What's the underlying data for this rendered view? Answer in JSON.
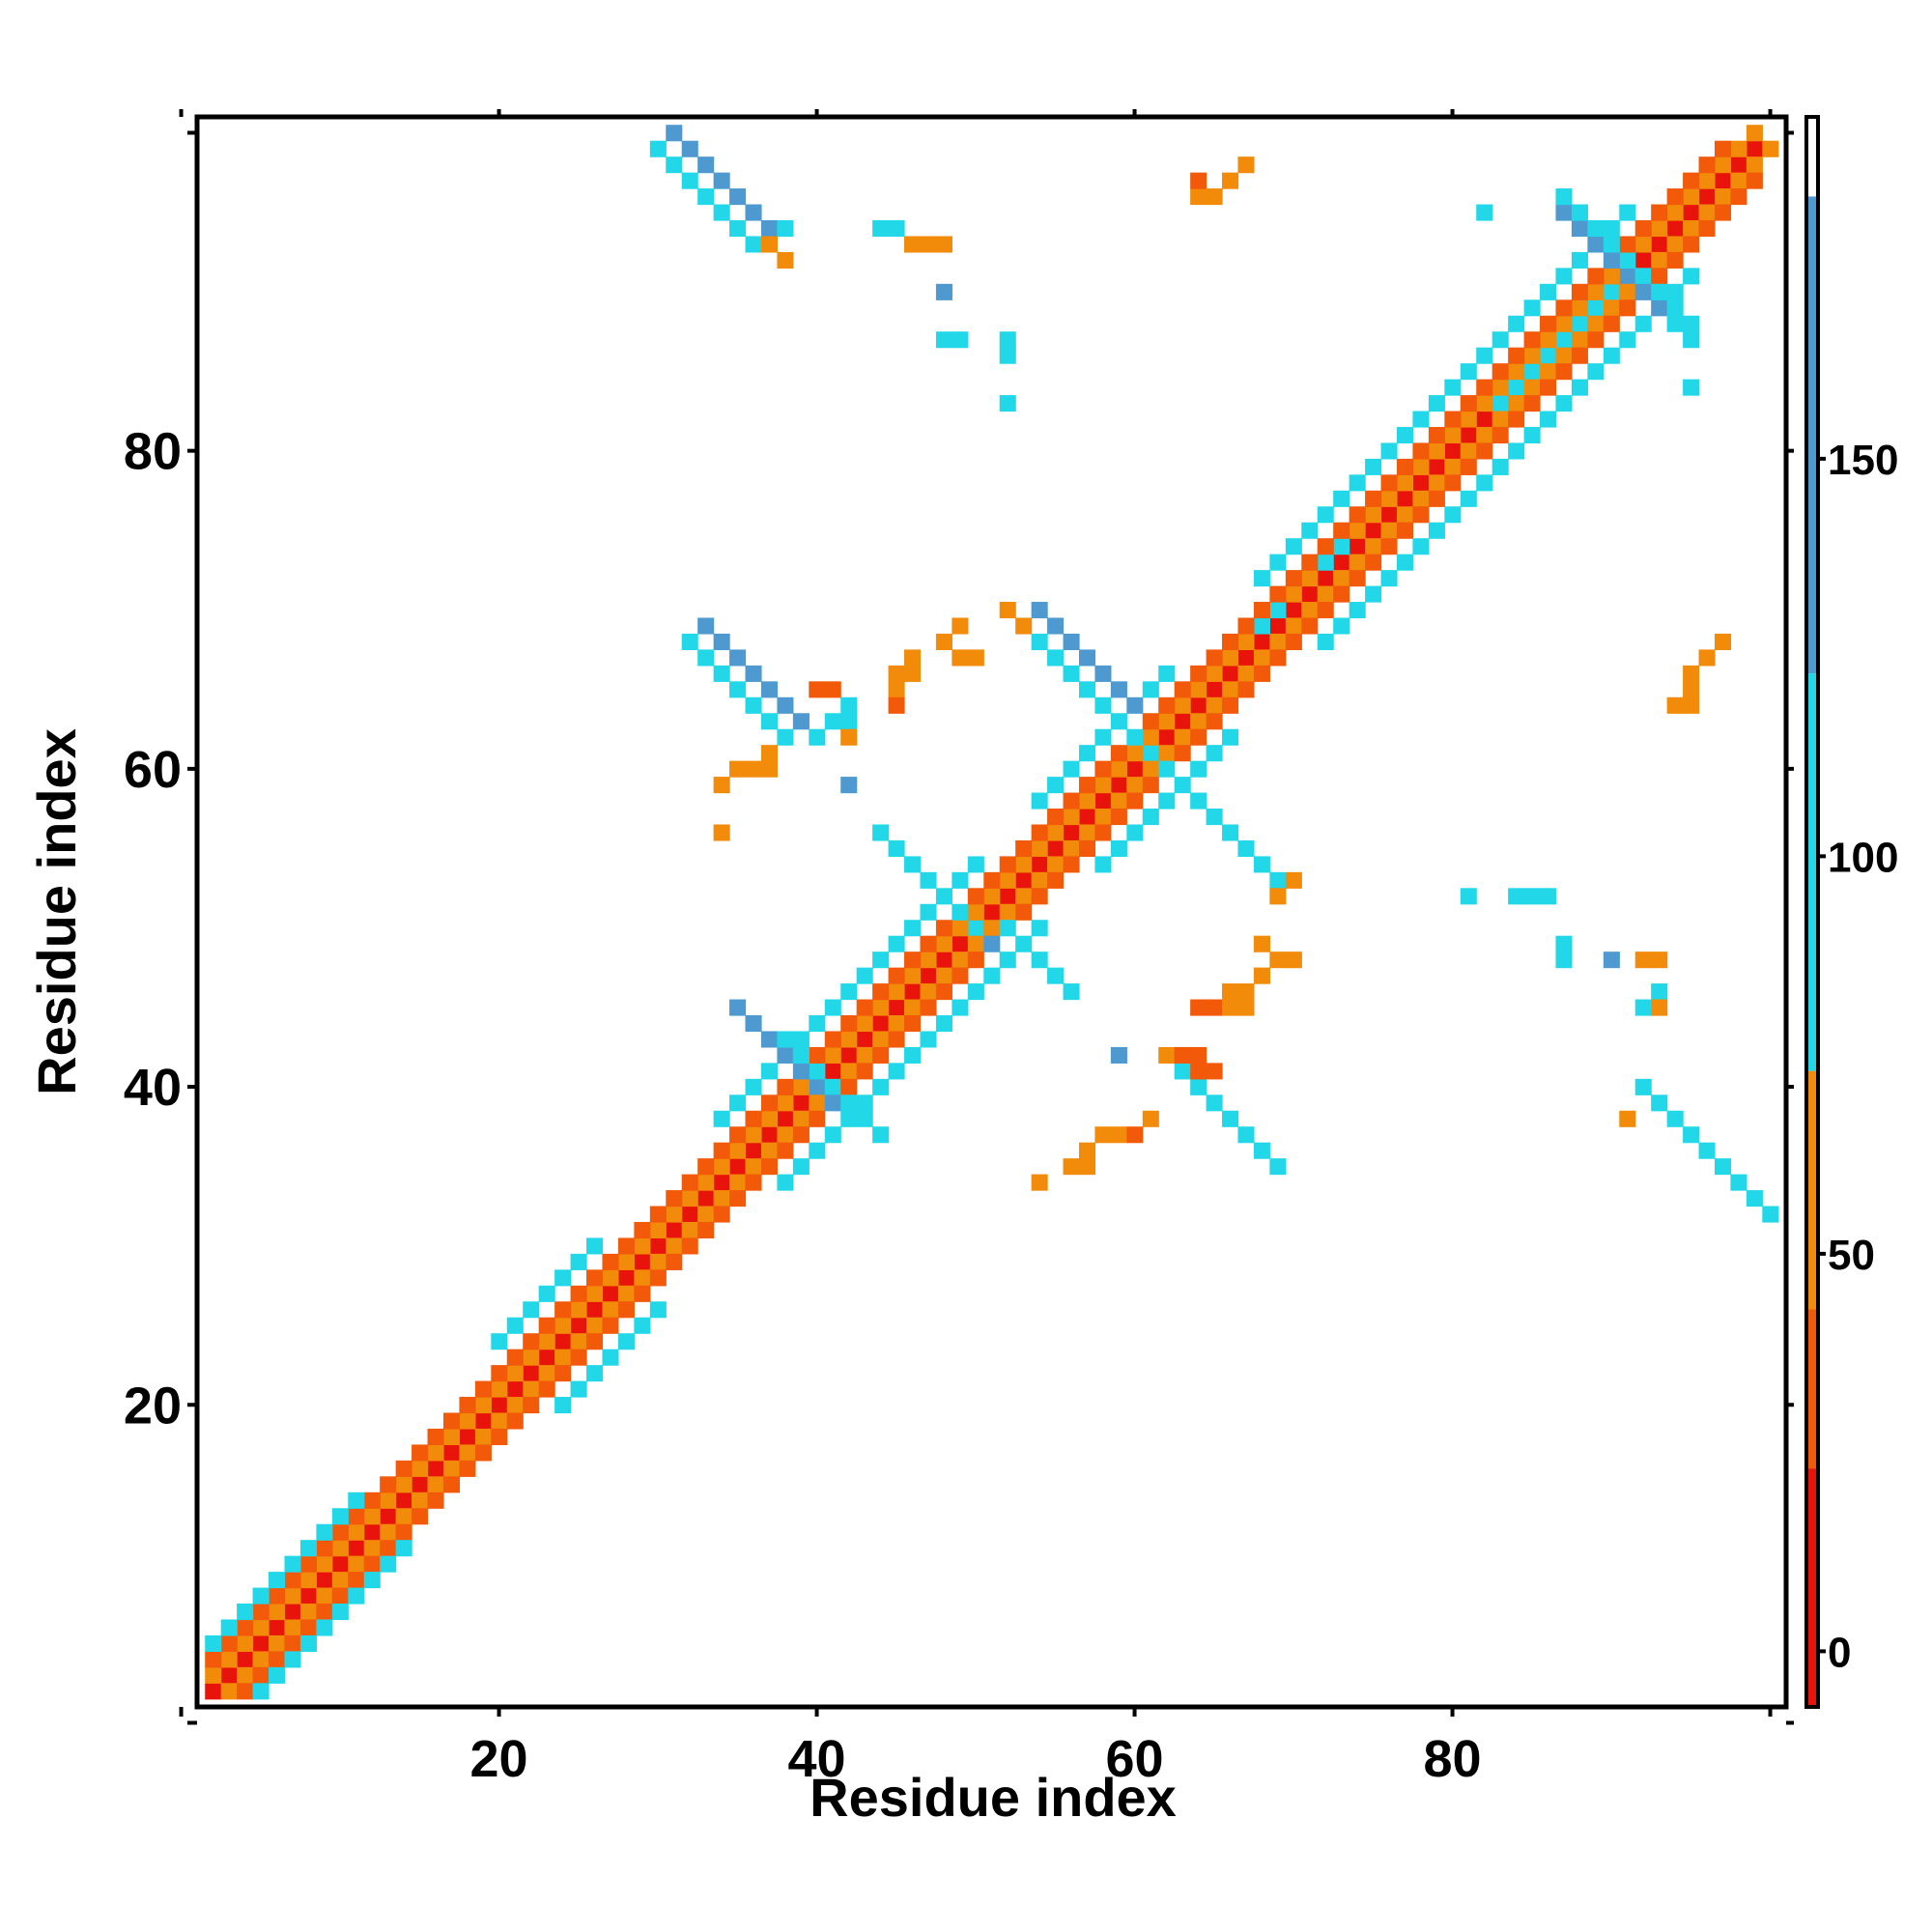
{
  "chart_data": {
    "type": "heatmap",
    "title": "",
    "xlabel": "Residue index",
    "ylabel": "Residue index",
    "xlim": [
      1,
      101
    ],
    "ylim": [
      1,
      101
    ],
    "x_ticks": [
      20,
      40,
      60,
      80
    ],
    "y_ticks": [
      20,
      40,
      60,
      80
    ],
    "colorbar": {
      "ticks": [
        0,
        50,
        100,
        150
      ],
      "range": [
        -7,
        193
      ],
      "bands": [
        {
          "from": -7,
          "to": 23,
          "color": "#e8140c"
        },
        {
          "from": 23,
          "to": 43,
          "color": "#f25a0a"
        },
        {
          "from": 43,
          "to": 73,
          "color": "#f28a0a"
        },
        {
          "from": 73,
          "to": 123,
          "color": "#22d8e8"
        },
        {
          "from": 123,
          "to": 183,
          "color": "#4e9ad0"
        },
        {
          "from": 183,
          "to": 193,
          "color": "#ffffff"
        }
      ]
    },
    "segments": [
      {
        "x0": 2,
        "y0": 2,
        "x1": 99,
        "y1": 99,
        "value": 10
      },
      {
        "x0": 3,
        "y0": 2,
        "x1": 100,
        "y1": 99,
        "value": 55
      },
      {
        "x0": 2,
        "y0": 3,
        "x1": 99,
        "y1": 100,
        "value": 55
      },
      {
        "x0": 4,
        "y0": 2,
        "x1": 99,
        "y1": 97,
        "value": 35
      },
      {
        "x0": 2,
        "y0": 4,
        "x1": 97,
        "y1": 99,
        "value": 35
      },
      {
        "x0": 5,
        "y0": 2,
        "x1": 14,
        "y1": 11,
        "value": 100
      },
      {
        "x0": 2,
        "y0": 5,
        "x1": 11,
        "y1": 14,
        "value": 100
      },
      {
        "x0": 24,
        "y0": 20,
        "x1": 30,
        "y1": 26,
        "value": 100
      },
      {
        "x0": 20,
        "y0": 24,
        "x1": 26,
        "y1": 30,
        "value": 100
      },
      {
        "x0": 38,
        "y0": 34,
        "x1": 54,
        "y1": 50,
        "value": 100
      },
      {
        "x0": 34,
        "y0": 38,
        "x1": 50,
        "y1": 54,
        "value": 100
      },
      {
        "x0": 58,
        "y0": 54,
        "x1": 66,
        "y1": 62,
        "value": 100
      },
      {
        "x0": 54,
        "y0": 58,
        "x1": 62,
        "y1": 66,
        "value": 100
      },
      {
        "x0": 72,
        "y0": 68,
        "x1": 95,
        "y1": 91,
        "value": 100
      },
      {
        "x0": 68,
        "y0": 72,
        "x1": 91,
        "y1": 95,
        "value": 100
      },
      {
        "x0": 31,
        "y0": 100,
        "x1": 37,
        "y1": 94,
        "value": 150
      },
      {
        "x0": 30,
        "y0": 99,
        "x1": 36,
        "y1": 93,
        "value": 100
      },
      {
        "x0": 33,
        "y0": 69,
        "x1": 39,
        "y1": 63,
        "value": 150
      },
      {
        "x0": 32,
        "y0": 68,
        "x1": 38,
        "y1": 62,
        "value": 100
      },
      {
        "x0": 40,
        "y0": 62,
        "x1": 42,
        "y1": 64,
        "value": 100
      },
      {
        "x0": 54,
        "y0": 70,
        "x1": 60,
        "y1": 64,
        "value": 150
      },
      {
        "x0": 53,
        "y0": 69,
        "x1": 61,
        "y1": 61,
        "value": 100
      },
      {
        "x0": 63,
        "y0": 59,
        "x1": 68,
        "y1": 54,
        "value": 150
      },
      {
        "x0": 62,
        "y0": 60,
        "x1": 69,
        "y1": 53,
        "value": 100
      },
      {
        "x0": 45,
        "y0": 55,
        "x1": 51,
        "y1": 49,
        "value": 150
      },
      {
        "x0": 44,
        "y0": 56,
        "x1": 50,
        "y1": 50,
        "value": 100
      },
      {
        "x0": 52,
        "y0": 50,
        "x1": 56,
        "y1": 46,
        "value": 100
      },
      {
        "x0": 35,
        "y0": 45,
        "x1": 41,
        "y1": 43,
        "value": 150
      },
      {
        "x0": 38,
        "y0": 43,
        "x1": 44,
        "y1": 37,
        "value": 100
      },
      {
        "x0": 64,
        "y0": 40,
        "x1": 68,
        "y1": 36,
        "value": 150
      },
      {
        "x0": 63,
        "y0": 41,
        "x1": 69,
        "y1": 35,
        "value": 100
      },
      {
        "x0": 93,
        "y0": 39,
        "x1": 99,
        "y1": 33,
        "value": 150
      },
      {
        "x0": 92,
        "y0": 40,
        "x1": 100,
        "y1": 32,
        "value": 100
      },
      {
        "x0": 87,
        "y0": 95,
        "x1": 93,
        "y1": 89,
        "value": 150
      },
      {
        "x0": 87,
        "y0": 96,
        "x1": 95,
        "y1": 88,
        "value": 100
      },
      {
        "x0": 83,
        "y0": 83,
        "x1": 90,
        "y1": 90,
        "value": 100
      }
    ],
    "cells": [
      [
        64,
        96,
        55
      ],
      [
        65,
        96,
        55
      ],
      [
        66,
        97,
        55
      ],
      [
        67,
        98,
        55
      ],
      [
        64,
        97,
        35
      ],
      [
        46,
        93,
        55
      ],
      [
        47,
        93,
        55
      ],
      [
        45,
        94,
        100
      ],
      [
        44,
        94,
        100
      ],
      [
        48,
        93,
        60
      ],
      [
        48,
        90,
        150
      ],
      [
        48,
        87,
        100
      ],
      [
        49,
        87,
        100
      ],
      [
        52,
        87,
        100
      ],
      [
        52,
        86,
        100
      ],
      [
        52,
        83,
        100
      ],
      [
        38,
        94,
        100
      ],
      [
        37,
        93,
        55
      ],
      [
        38,
        92,
        60
      ],
      [
        45,
        66,
        55
      ],
      [
        46,
        66,
        55
      ],
      [
        45,
        65,
        55
      ],
      [
        46,
        67,
        55
      ],
      [
        45,
        64,
        30
      ],
      [
        48,
        68,
        55
      ],
      [
        49,
        67,
        55
      ],
      [
        50,
        67,
        55
      ],
      [
        49,
        69,
        45
      ],
      [
        41,
        65,
        30
      ],
      [
        40,
        65,
        30
      ],
      [
        41,
        63,
        100
      ],
      [
        42,
        63,
        100
      ],
      [
        42,
        62,
        55
      ],
      [
        37,
        61,
        55
      ],
      [
        36,
        60,
        55
      ],
      [
        35,
        60,
        55
      ],
      [
        34,
        59,
        55
      ],
      [
        37,
        60,
        55
      ],
      [
        42,
        59,
        150
      ],
      [
        34,
        56,
        55
      ],
      [
        53,
        69,
        55
      ],
      [
        52,
        70,
        60
      ],
      [
        70,
        53,
        55
      ],
      [
        69,
        52,
        55
      ],
      [
        68,
        49,
        55
      ],
      [
        69,
        48,
        55
      ],
      [
        70,
        48,
        55
      ],
      [
        68,
        47,
        55
      ],
      [
        64,
        45,
        35
      ],
      [
        65,
        45,
        35
      ],
      [
        66,
        45,
        55
      ],
      [
        67,
        45,
        55
      ],
      [
        66,
        46,
        55
      ],
      [
        67,
        46,
        55
      ],
      [
        59,
        42,
        150
      ],
      [
        62,
        42,
        60
      ],
      [
        63,
        42,
        35
      ],
      [
        64,
        41,
        35
      ],
      [
        65,
        41,
        35
      ],
      [
        64,
        42,
        35
      ],
      [
        57,
        36,
        55
      ],
      [
        58,
        37,
        55
      ],
      [
        59,
        37,
        55
      ],
      [
        60,
        37,
        35
      ],
      [
        61,
        38,
        55
      ],
      [
        57,
        35,
        55
      ],
      [
        56,
        35,
        55
      ],
      [
        54,
        34,
        55
      ],
      [
        81,
        52,
        100
      ],
      [
        84,
        52,
        100
      ],
      [
        85,
        52,
        100
      ],
      [
        86,
        52,
        100
      ],
      [
        87,
        49,
        100
      ],
      [
        87,
        48,
        100
      ],
      [
        90,
        48,
        150
      ],
      [
        92,
        48,
        55
      ],
      [
        93,
        48,
        55
      ],
      [
        93,
        46,
        100
      ],
      [
        92,
        45,
        100
      ],
      [
        93,
        45,
        55
      ],
      [
        91,
        38,
        55
      ],
      [
        92,
        40,
        100
      ],
      [
        95,
        66,
        55
      ],
      [
        96,
        67,
        55
      ],
      [
        97,
        68,
        55
      ],
      [
        95,
        65,
        55
      ],
      [
        94,
        64,
        55
      ],
      [
        95,
        64,
        55
      ],
      [
        82,
        95,
        100
      ],
      [
        94,
        88,
        100
      ],
      [
        95,
        88,
        100
      ],
      [
        95,
        87,
        100
      ],
      [
        95,
        84,
        100
      ],
      [
        72,
        73,
        100
      ],
      [
        73,
        74,
        100
      ],
      [
        68,
        69,
        100
      ],
      [
        69,
        70,
        100
      ]
    ]
  }
}
